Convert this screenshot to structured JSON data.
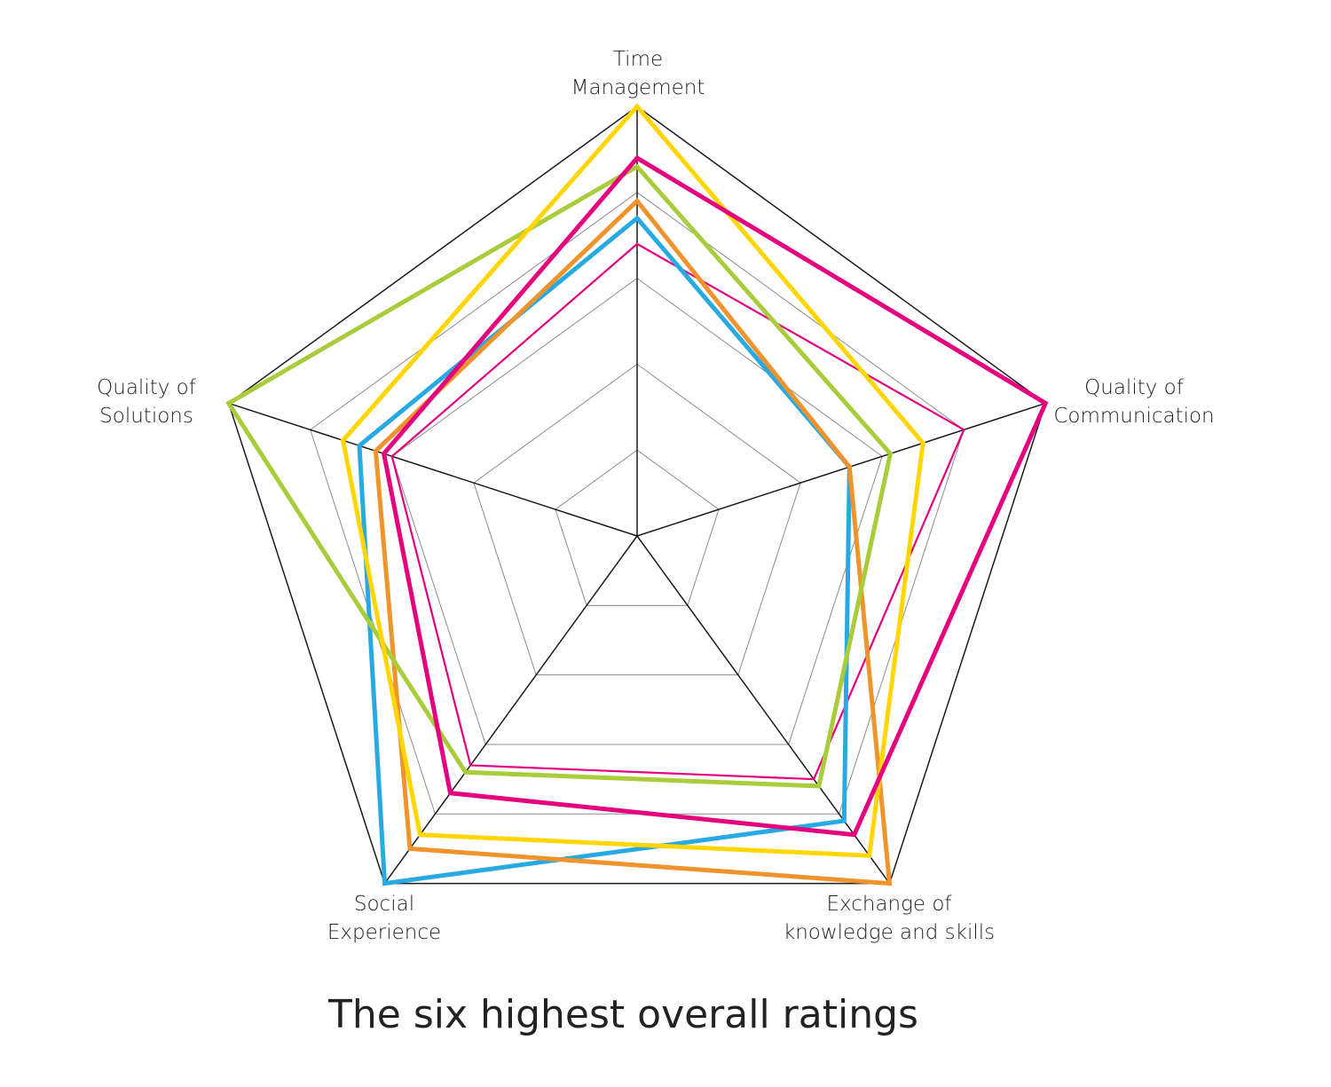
{
  "chart_data": {
    "type": "radar",
    "title": "The six highest overall ratings",
    "axes": [
      {
        "id": "time",
        "label_lines": [
          "Time",
          "Management"
        ]
      },
      {
        "id": "communication",
        "label_lines": [
          "Quality of",
          "Communication"
        ]
      },
      {
        "id": "exchange",
        "label_lines": [
          "Exchange of",
          "knowledge and skills"
        ]
      },
      {
        "id": "social",
        "label_lines": [
          "Social",
          "Experience"
        ]
      },
      {
        "id": "solutions",
        "label_lines": [
          "Quality of",
          "Solutions"
        ]
      }
    ],
    "rlim": [
      0,
      5
    ],
    "grid_levels": [
      1,
      2,
      3,
      4,
      5
    ],
    "grid": true,
    "legend": "none",
    "series": [
      {
        "color": "#e5007e",
        "stroke": 2.2,
        "values": [
          3.4,
          4.0,
          3.5,
          3.3,
          3.0
        ]
      },
      {
        "color": "#27a9e1",
        "stroke": 5,
        "values": [
          3.7,
          2.6,
          4.1,
          5.0,
          3.4
        ]
      },
      {
        "color": "#f0932b",
        "stroke": 5,
        "values": [
          3.9,
          2.6,
          5.0,
          4.5,
          3.2
        ]
      },
      {
        "color": "#a9cc3a",
        "stroke": 5,
        "values": [
          4.3,
          3.1,
          3.6,
          3.4,
          5.0
        ]
      },
      {
        "color": "#ffd600",
        "stroke": 5,
        "values": [
          5.0,
          3.5,
          4.6,
          4.3,
          3.6
        ]
      },
      {
        "color": "#e5007e",
        "stroke": 5,
        "values": [
          4.4,
          5.0,
          4.3,
          3.7,
          3.1
        ]
      }
    ]
  }
}
